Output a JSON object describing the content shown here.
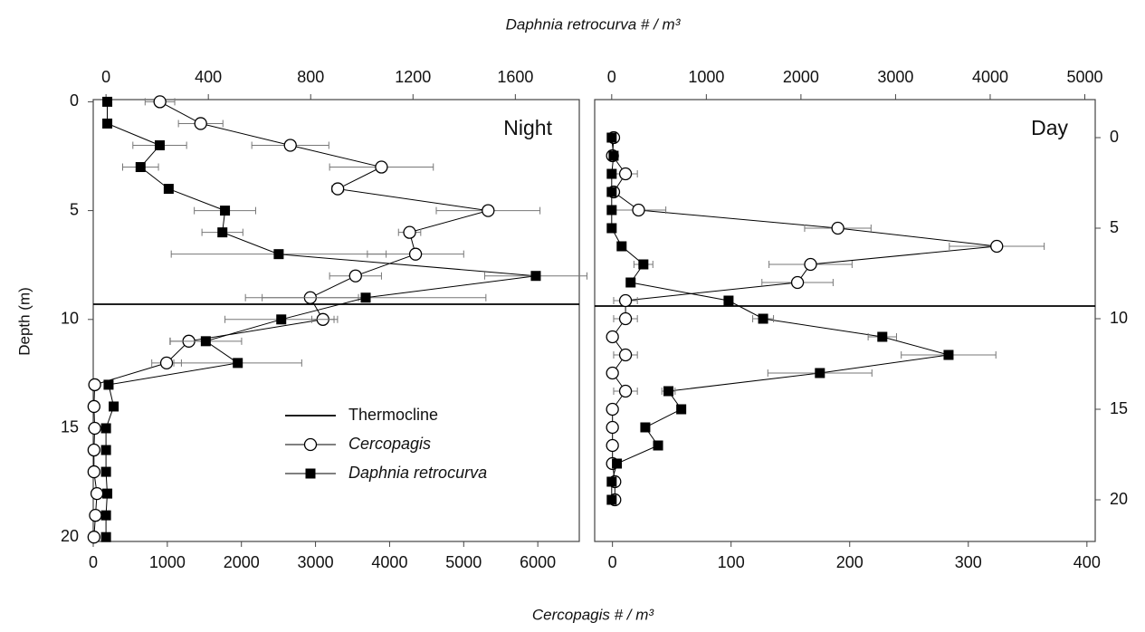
{
  "chart_data": [
    {
      "type": "profile",
      "title": "Night",
      "x_label": "Cercopagis # / m³",
      "x2_label": "Daphnia retrocurva # / m³",
      "y_label": "Depth (m)",
      "y": [
        0,
        1,
        2,
        3,
        4,
        5,
        6,
        7,
        8,
        9,
        10,
        11,
        12,
        13,
        14,
        15,
        16,
        17,
        18,
        19,
        20
      ],
      "ylim": [
        -0.1,
        20.2
      ],
      "yticks": [
        0,
        5,
        10,
        15,
        20
      ],
      "y_axis_side": "left",
      "xlim": [
        0,
        6560
      ],
      "xticks": [
        0,
        1000,
        2000,
        3000,
        4000,
        5000,
        6000
      ],
      "x2lim": [
        -50,
        1850
      ],
      "x2ticks": [
        0,
        400,
        800,
        1200,
        1600
      ],
      "thermocline": {
        "name": "Thermocline",
        "value": 9.3,
        "color": "#000000"
      },
      "legend": "lower-center",
      "series": [
        {
          "name": "Cercopagis",
          "color": "#000000",
          "marker": "circle",
          "axis": "x",
          "x": [
            900,
            1450,
            2660,
            3890,
            3300,
            5330,
            4270,
            4350,
            3540,
            2930,
            3100,
            1290,
            990,
            20,
            10,
            20,
            10,
            10,
            50,
            30,
            10
          ],
          "xerr": [
            200,
            300,
            520,
            700,
            80,
            700,
            150,
            650,
            350,
            650,
            150,
            250,
            200,
            30,
            20,
            20,
            20,
            20,
            30,
            30,
            20
          ]
        },
        {
          "name": "Daphnia retrocurva",
          "color": "#000000",
          "marker": "square",
          "axis": "x2",
          "x": [
            5,
            5,
            210,
            135,
            245,
            465,
            455,
            675,
            1680,
            1015,
            685,
            390,
            515,
            10,
            30,
            0,
            0,
            0,
            5,
            0,
            0
          ],
          "xerr": [
            0,
            0,
            105,
            70,
            0,
            120,
            80,
            420,
            200,
            470,
            220,
            140,
            250,
            0,
            0,
            0,
            0,
            0,
            0,
            0,
            0
          ]
        }
      ]
    },
    {
      "type": "profile",
      "title": "Day",
      "y": [
        0,
        1,
        2,
        3,
        4,
        5,
        6,
        7,
        8,
        9,
        10,
        11,
        12,
        13,
        14,
        15,
        16,
        17,
        18,
        19,
        20
      ],
      "ylim": [
        -2.1,
        22.3
      ],
      "yticks": [
        0,
        5,
        10,
        15,
        20
      ],
      "y_axis_side": "right",
      "xlim": [
        -15,
        407
      ],
      "xticks": [
        0,
        100,
        200,
        300,
        400
      ],
      "x2lim": [
        -180,
        5110
      ],
      "x2ticks": [
        0,
        1000,
        2000,
        3000,
        4000,
        5000
      ],
      "thermocline": {
        "value": 9.3,
        "color": "#000000"
      },
      "series": [
        {
          "color": "#000000",
          "marker": "circle",
          "axis": "x",
          "x": [
            1,
            0,
            11,
            1,
            22,
            190,
            324,
            167,
            156,
            11,
            11,
            0,
            11,
            0,
            11,
            0,
            0,
            0,
            0,
            2,
            2
          ],
          "xerr": [
            0,
            0,
            10,
            0,
            23,
            28,
            40,
            35,
            30,
            10,
            10,
            0,
            10,
            0,
            10,
            0,
            0,
            0,
            0,
            0,
            0
          ]
        },
        {
          "color": "#000000",
          "marker": "square",
          "axis": "x2",
          "x": [
            0,
            20,
            0,
            0,
            0,
            0,
            105,
            335,
            200,
            1235,
            1600,
            2860,
            3560,
            2200,
            600,
            735,
            355,
            490,
            55,
            0,
            0
          ],
          "xerr": [
            0,
            0,
            0,
            0,
            0,
            0,
            0,
            100,
            0,
            0,
            110,
            150,
            500,
            550,
            70,
            0,
            0,
            0,
            0,
            0,
            0
          ]
        }
      ]
    }
  ]
}
